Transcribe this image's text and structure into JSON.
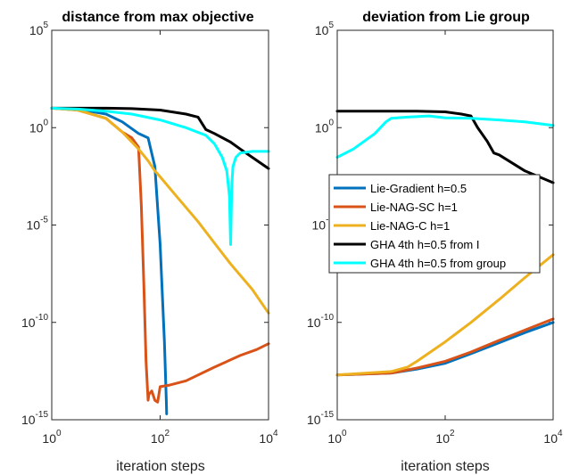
{
  "chart_data": [
    {
      "type": "line",
      "title": "distance from max objective",
      "xlabel": "iteration steps",
      "ylabel": "",
      "x_scale": "log",
      "y_scale": "log",
      "xlim": [
        1,
        10000
      ],
      "ylim": [
        1e-15,
        100000
      ],
      "x_ticks": [
        {
          "base": "10",
          "exp": "0",
          "value": 1
        },
        {
          "base": "10",
          "exp": "2",
          "value": 100
        },
        {
          "base": "10",
          "exp": "4",
          "value": 10000
        }
      ],
      "y_ticks": [
        {
          "base": "10",
          "exp": "-15",
          "value": 1e-15
        },
        {
          "base": "10",
          "exp": "-10",
          "value": 1e-10
        },
        {
          "base": "10",
          "exp": "-5",
          "value": 1e-05
        },
        {
          "base": "10",
          "exp": "0",
          "value": 1
        },
        {
          "base": "10",
          "exp": "5",
          "value": 100000
        }
      ],
      "series": [
        {
          "name": "Lie-Gradient h=0.5",
          "color": "#0072BD",
          "x": [
            1,
            3,
            10,
            20,
            40,
            60,
            80,
            100,
            120,
            130,
            132
          ],
          "y": [
            10,
            9,
            5,
            2,
            0.5,
            0.3,
            0.01,
            1e-06,
            1e-11,
            1e-14,
            2e-15
          ]
        },
        {
          "name": "Lie-NAG-SC h=1",
          "color": "#D95319",
          "x": [
            1,
            3,
            10,
            20,
            30,
            40,
            45,
            50,
            55,
            60,
            62,
            70,
            80,
            90,
            100,
            150,
            300,
            1000,
            3000,
            6000,
            10000
          ],
          "y": [
            10,
            8,
            3,
            0.6,
            0.3,
            0.1,
            0.0001,
            1e-08,
            1e-12,
            1e-14,
            2e-14,
            3e-14,
            1e-14,
            8e-15,
            5e-14,
            6e-14,
            1e-13,
            5e-13,
            2e-12,
            4e-12,
            8e-12
          ]
        },
        {
          "name": "Lie-NAG-C h=1",
          "color": "#EDB120",
          "x": [
            1,
            3,
            10,
            20,
            40,
            60,
            80,
            100,
            200,
            500,
            1000,
            2000,
            5000,
            10000
          ],
          "y": [
            10,
            8,
            3,
            0.6,
            0.08,
            0.02,
            0.006,
            0.003,
            0.0003,
            1.5e-05,
            1.2e-06,
            1e-07,
            5e-09,
            3e-10
          ]
        },
        {
          "name": "GHA 4th h=0.5 from I",
          "color": "#000000",
          "x": [
            1,
            3,
            10,
            30,
            100,
            300,
            500,
            700,
            1000,
            2000,
            3000,
            5000,
            10000
          ],
          "y": [
            10,
            10,
            10,
            9.5,
            8,
            5,
            3.5,
            0.8,
            0.5,
            0.18,
            0.08,
            0.03,
            0.008
          ]
        },
        {
          "name": "GHA 4th h=0.5 from group",
          "color": "#00FFFF",
          "x": [
            1,
            3,
            10,
            30,
            100,
            300,
            700,
            1000,
            1400,
            1700,
            1900,
            2000,
            2050,
            2100,
            2200,
            2500,
            3000,
            5000,
            10000
          ],
          "y": [
            10,
            9,
            7,
            5,
            2.5,
            1,
            0.4,
            0.15,
            0.03,
            0.006,
            0.0003,
            1e-06,
            5e-05,
            0.001,
            0.01,
            0.03,
            0.05,
            0.06,
            0.06
          ]
        }
      ]
    },
    {
      "type": "line",
      "title": "deviation from Lie group",
      "xlabel": "iteration steps",
      "ylabel": "",
      "x_scale": "log",
      "y_scale": "log",
      "xlim": [
        1,
        10000
      ],
      "ylim": [
        1e-15,
        100000
      ],
      "x_ticks": [
        {
          "base": "10",
          "exp": "0",
          "value": 1
        },
        {
          "base": "10",
          "exp": "2",
          "value": 100
        },
        {
          "base": "10",
          "exp": "4",
          "value": 10000
        }
      ],
      "y_ticks": [
        {
          "base": "10",
          "exp": "-15",
          "value": 1e-15
        },
        {
          "base": "10",
          "exp": "-10",
          "value": 1e-10
        },
        {
          "base": "10",
          "exp": "-5",
          "value": 1e-05
        },
        {
          "base": "10",
          "exp": "0",
          "value": 1
        },
        {
          "base": "10",
          "exp": "5",
          "value": 100000
        }
      ],
      "legend_position": "center",
      "series": [
        {
          "name": "Lie-Gradient h=0.5",
          "color": "#0072BD",
          "x": [
            1,
            10,
            30,
            100,
            300,
            1000,
            3000,
            10000
          ],
          "y": [
            2e-13,
            2.5e-13,
            4e-13,
            8e-13,
            2.5e-12,
            9e-12,
            3e-11,
            1e-10
          ]
        },
        {
          "name": "Lie-NAG-SC h=1",
          "color": "#D95319",
          "x": [
            1,
            10,
            30,
            100,
            300,
            1000,
            3000,
            10000
          ],
          "y": [
            2e-13,
            2.5e-13,
            4.5e-13,
            1e-12,
            3e-12,
            1.2e-11,
            4e-11,
            1.5e-10
          ]
        },
        {
          "name": "Lie-NAG-C h=1",
          "color": "#EDB120",
          "x": [
            1,
            10,
            20,
            30,
            100,
            300,
            1000,
            3000,
            10000
          ],
          "y": [
            2e-13,
            3e-13,
            5e-13,
            1e-12,
            1e-11,
            1e-10,
            1.5e-09,
            2e-08,
            3e-07
          ]
        },
        {
          "name": "GHA 4th h=0.5 from I",
          "color": "#000000",
          "x": [
            1,
            10,
            30,
            100,
            200,
            300,
            400,
            600,
            800,
            1000,
            3000,
            10000
          ],
          "y": [
            7,
            7,
            7,
            6.5,
            5,
            4,
            1,
            0.2,
            0.05,
            0.04,
            0.006,
            0.0015
          ]
        },
        {
          "name": "GHA 4th h=0.5 from group",
          "color": "#00FFFF",
          "x": [
            1,
            2,
            5,
            8,
            10,
            20,
            50,
            100,
            300,
            1000,
            3000,
            10000
          ],
          "y": [
            0.03,
            0.08,
            0.5,
            2,
            3,
            3.5,
            4,
            3.2,
            3,
            2.5,
            2,
            1.3
          ]
        }
      ]
    }
  ]
}
